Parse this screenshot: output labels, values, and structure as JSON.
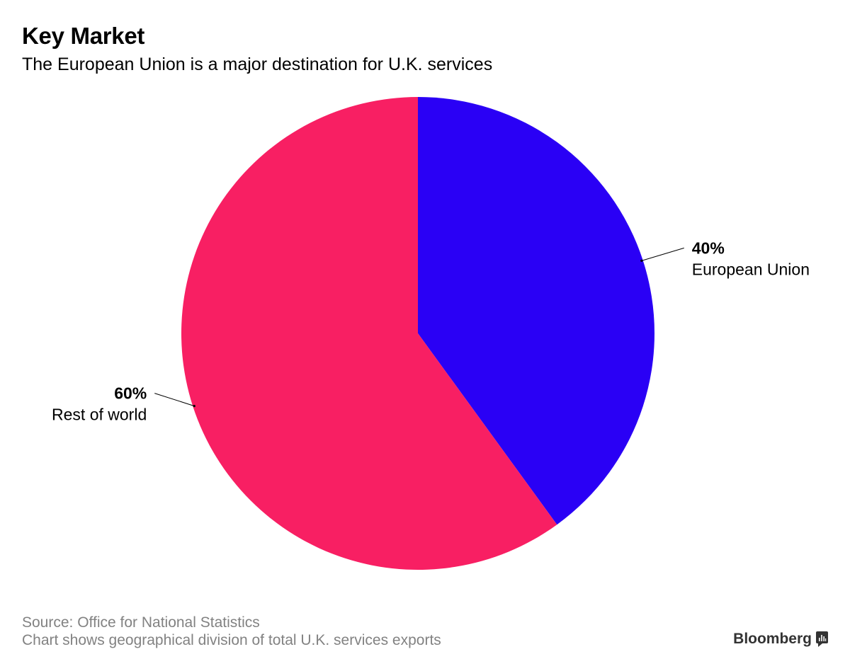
{
  "header": {
    "title": "Key Market",
    "subtitle": "The European Union is a major destination for U.K. services"
  },
  "chart_data": {
    "type": "pie",
    "title": "Key Market",
    "subtitle": "The European Union is a major destination for U.K. services",
    "slices": [
      {
        "name": "European Union",
        "value": 40,
        "label": "40%",
        "color": "#2a00f5"
      },
      {
        "name": "Rest of world",
        "value": 60,
        "label": "60%",
        "color": "#f81f63"
      }
    ],
    "start": "12 o'clock",
    "direction": "clockwise"
  },
  "footer": {
    "source": "Source: Office for National Statistics",
    "note": "Chart shows geographical division of total U.K. services exports"
  },
  "brand": {
    "name": "Bloomberg",
    "icon": "bloomberg-chart-icon"
  }
}
